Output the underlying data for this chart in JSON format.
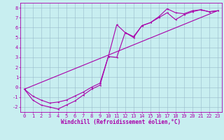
{
  "xlabel": "Windchill (Refroidissement éolien,°C)",
  "xlim": [
    -0.5,
    23.5
  ],
  "ylim": [
    -2.5,
    8.5
  ],
  "xticks": [
    0,
    1,
    2,
    3,
    4,
    5,
    6,
    7,
    8,
    9,
    10,
    11,
    12,
    13,
    14,
    15,
    16,
    17,
    18,
    19,
    20,
    21,
    22,
    23
  ],
  "yticks": [
    -2,
    -1,
    0,
    1,
    2,
    3,
    4,
    5,
    6,
    7,
    8
  ],
  "bg_color": "#c8eef0",
  "line_color": "#aa00aa",
  "grid_color": "#99bbcc",
  "line1_x": [
    0,
    1,
    2,
    3,
    4,
    5,
    6,
    7,
    8,
    9,
    10,
    11,
    12,
    13,
    14,
    15,
    16,
    17,
    18,
    19,
    20,
    21,
    22,
    23
  ],
  "line1_y": [
    -0.2,
    -1.3,
    -1.8,
    -2.0,
    -2.2,
    -1.8,
    -1.4,
    -0.8,
    -0.2,
    0.2,
    3.1,
    3.0,
    5.5,
    5.0,
    6.2,
    6.5,
    7.0,
    7.5,
    6.8,
    7.3,
    7.6,
    7.8,
    7.6,
    7.7
  ],
  "line2_x": [
    0,
    1,
    2,
    3,
    4,
    5,
    6,
    7,
    8,
    9,
    10,
    11,
    12,
    13,
    14,
    15,
    16,
    17,
    18,
    19,
    20,
    21,
    22,
    23
  ],
  "line2_y": [
    -0.2,
    -0.9,
    -1.3,
    -1.6,
    -1.5,
    -1.3,
    -0.9,
    -0.5,
    0.0,
    0.4,
    3.1,
    6.3,
    5.5,
    5.1,
    6.2,
    6.5,
    7.1,
    7.9,
    7.5,
    7.4,
    7.7,
    7.8,
    7.6,
    7.7
  ],
  "line3_x": [
    0,
    23
  ],
  "line3_y": [
    -0.2,
    7.7
  ],
  "xlabel_fontsize": 5.5,
  "tick_fontsize": 5,
  "lw": 0.8,
  "ms": 1.8
}
